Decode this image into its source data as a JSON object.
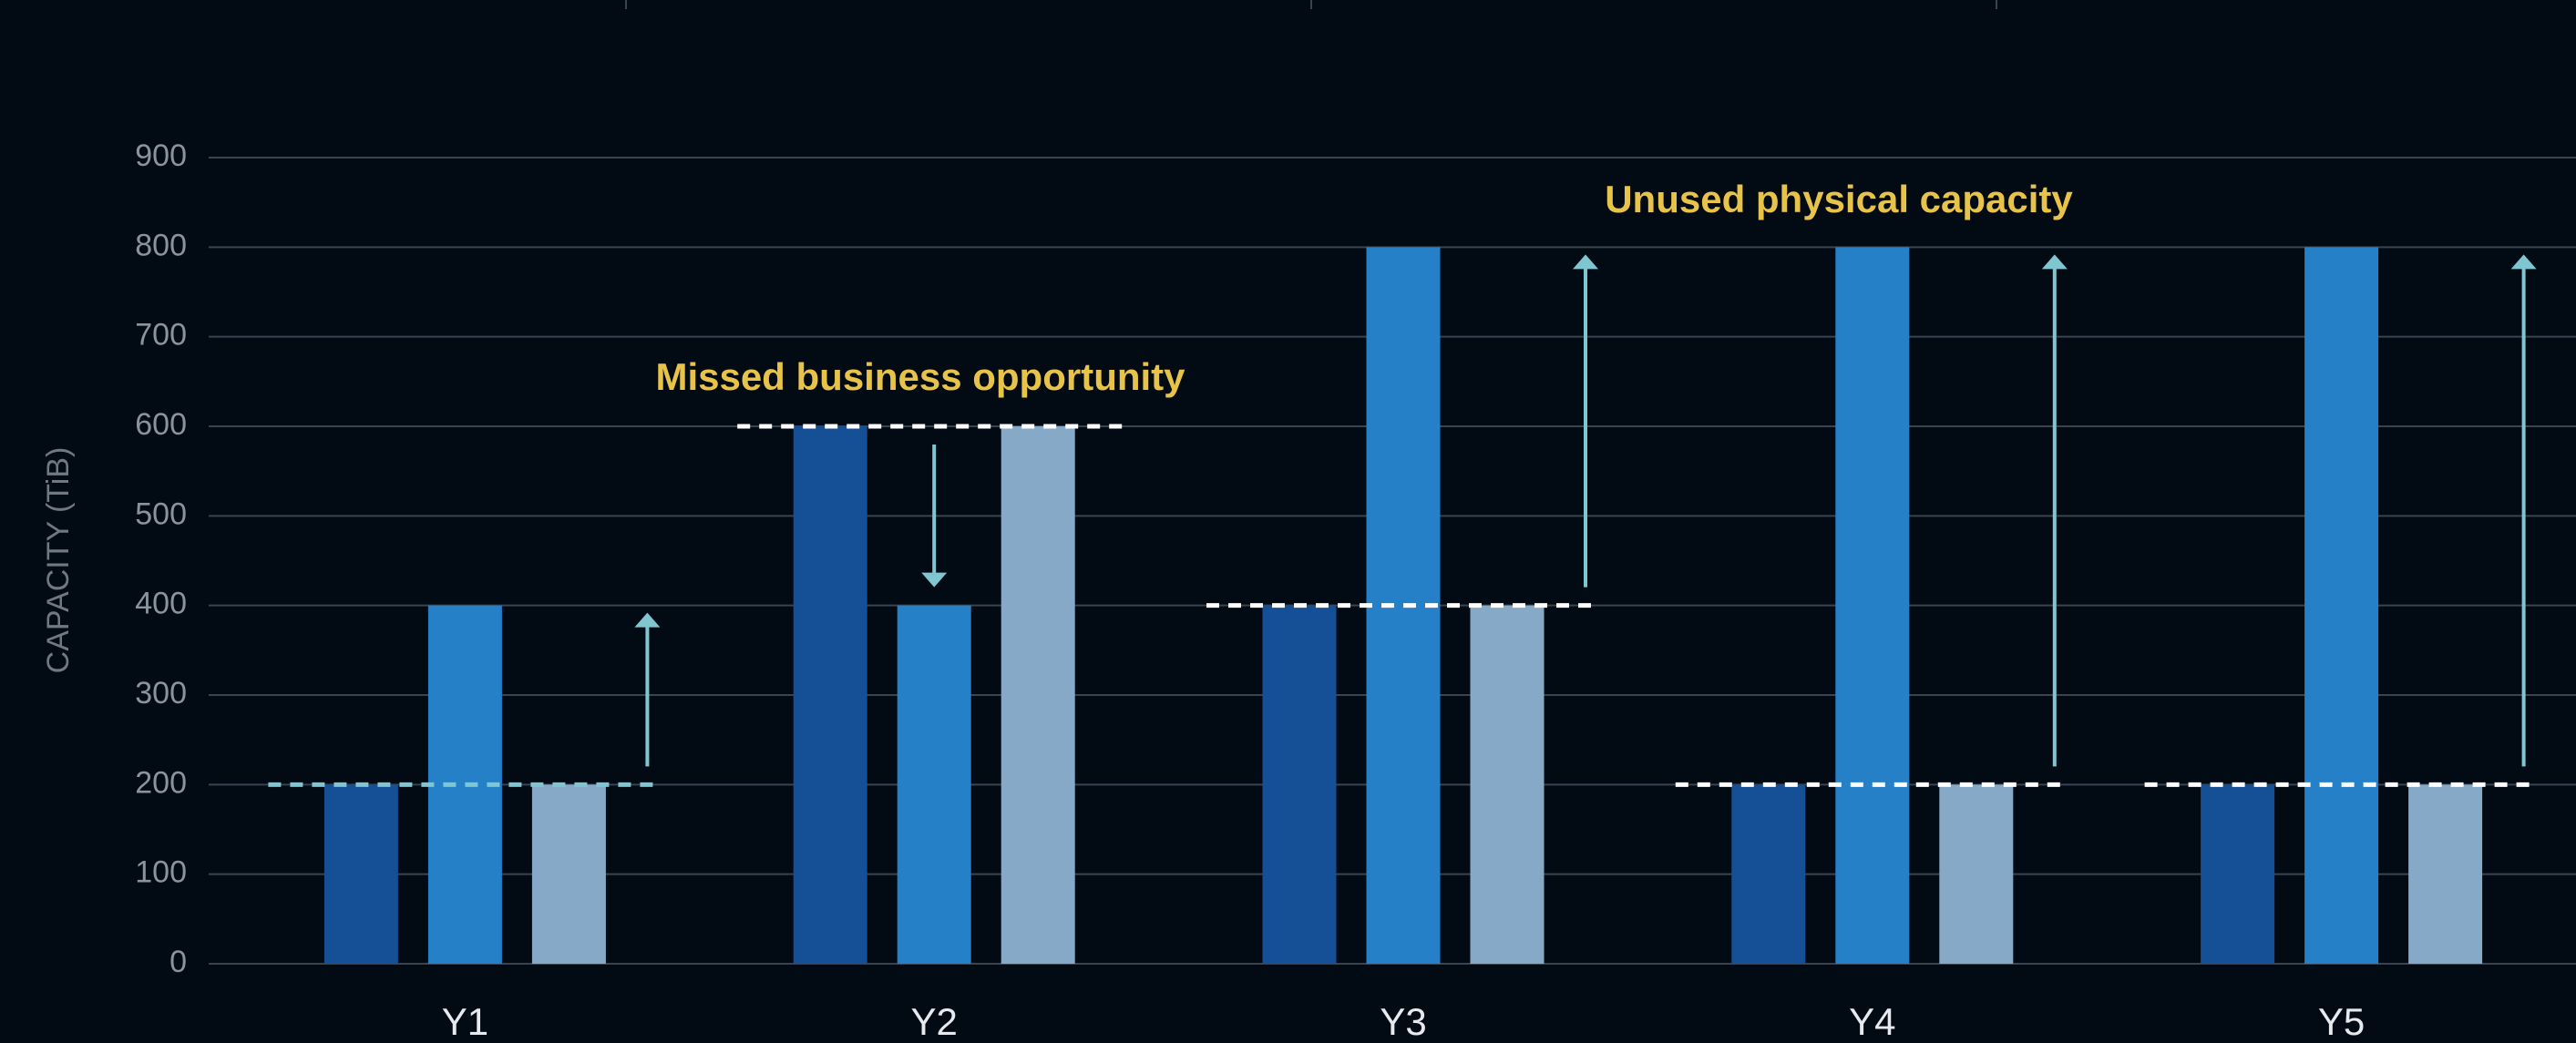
{
  "chart_data": {
    "type": "bar",
    "ylabel": "CAPACITY (TiB)",
    "categories": [
      "Y1",
      "Y2",
      "Y3",
      "Y4",
      "Y5"
    ],
    "series": [
      {
        "color": "#154f96",
        "values": [
          200,
          600,
          400,
          200,
          200
        ]
      },
      {
        "color": "#2580c8",
        "values": [
          400,
          400,
          800,
          800,
          800
        ]
      },
      {
        "color": "#85a9c6",
        "values": [
          200,
          600,
          400,
          200,
          200
        ]
      }
    ],
    "ylim": [
      0,
      900
    ],
    "yticks": [
      0,
      100,
      200,
      300,
      400,
      500,
      600,
      700,
      800,
      900
    ],
    "grid": true,
    "annotations": [
      "Missed business opportunity",
      "Unused physical capacity"
    ]
  }
}
